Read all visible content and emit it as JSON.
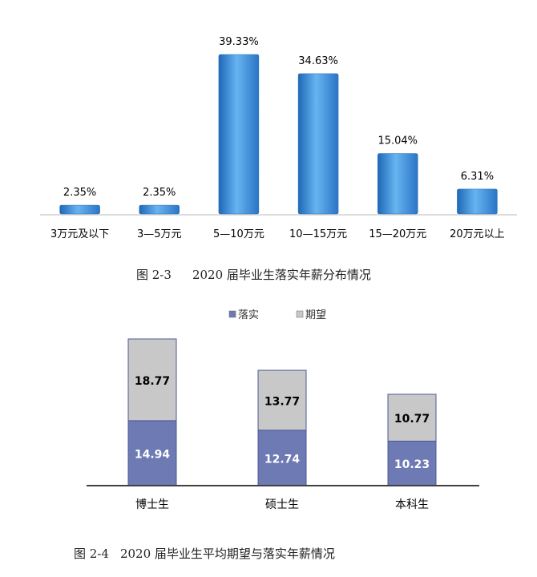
{
  "chart_data": [
    {
      "type": "bar",
      "categories": [
        "3万元及以下",
        "3—5万元",
        "5—10万元",
        "10—15万元",
        "15—20万元",
        "20万元以上"
      ],
      "values": [
        2.35,
        2.35,
        39.33,
        34.63,
        15.04,
        6.31
      ],
      "data_labels": [
        "2.35%",
        "2.35%",
        "39.33%",
        "34.63%",
        "15.04%",
        "6.31%"
      ],
      "unit": "%",
      "title": "",
      "xlabel": "",
      "ylabel": "",
      "ylim": [
        0,
        40
      ],
      "grid": false,
      "legend": "none",
      "colors": {
        "bar": "#3a8ede",
        "bar_light": "#67b4f2",
        "bar_dark": "#1e68b6"
      }
    },
    {
      "type": "bar",
      "stacked": true,
      "categories": [
        "博士生",
        "硕士生",
        "本科生"
      ],
      "series": [
        {
          "name": "落实",
          "values": [
            14.94,
            12.74,
            10.23
          ],
          "labels": [
            "14.94",
            "12.74",
            "10.23"
          ],
          "color": "#6d7ab3"
        },
        {
          "name": "期望",
          "values": [
            18.77,
            13.77,
            10.77
          ],
          "labels": [
            "18.77",
            "13.77",
            "10.77"
          ],
          "color": "#c8c8c8"
        }
      ],
      "title": "",
      "xlabel": "",
      "ylabel": "",
      "ylim": [
        0,
        40
      ],
      "grid": false,
      "legend": "top-center"
    }
  ],
  "captions": {
    "fig1_num": "图 2-3",
    "fig1_text": "2020 届毕业生落实年薪分布情况",
    "fig2_num": "图 2-4",
    "fig2_text": "2020 届毕业生平均期望与落实年薪情况"
  }
}
